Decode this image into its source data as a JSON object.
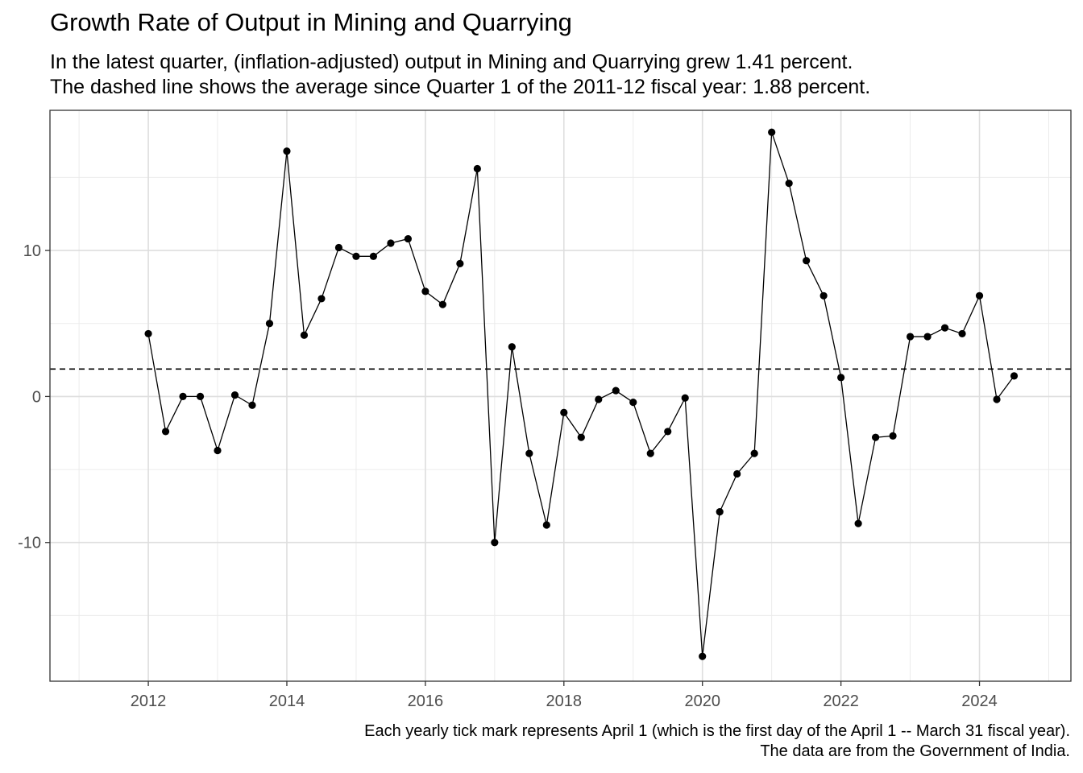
{
  "chart_data": {
    "type": "line",
    "title": "Growth Rate of Output in Mining and Quarrying",
    "subtitle": [
      "In the latest quarter, (inflation-adjusted) output in Mining and Quarrying grew 1.41 percent.",
      "The dashed line shows the average since Quarter 1 of the 2011-12 fiscal year: 1.88 percent."
    ],
    "caption": [
      "Each yearly tick mark represents April 1 (which is the first day of the April 1 -- March 31 fiscal year).",
      "The data are from the Government of India."
    ],
    "xlabel": "",
    "ylabel": "",
    "x_ticks": [
      "2012",
      "2014",
      "2016",
      "2018",
      "2020",
      "2022",
      "2024"
    ],
    "y_ticks": [
      -10,
      0,
      10
    ],
    "xlim": [
      2010.58,
      2025.32
    ],
    "ylim": [
      -19.5,
      19.6
    ],
    "grid": true,
    "average": 1.88,
    "latest": 1.41,
    "x": [
      2012.0,
      2012.25,
      2012.5,
      2012.75,
      2013.0,
      2013.25,
      2013.5,
      2013.75,
      2014.0,
      2014.25,
      2014.5,
      2014.75,
      2015.0,
      2015.25,
      2015.5,
      2015.75,
      2016.0,
      2016.25,
      2016.5,
      2016.75,
      2017.0,
      2017.25,
      2017.5,
      2017.75,
      2018.0,
      2018.25,
      2018.5,
      2018.75,
      2019.0,
      2019.25,
      2019.5,
      2019.75,
      2020.0,
      2020.25,
      2020.5,
      2020.75,
      2021.0,
      2021.25,
      2021.5,
      2021.75,
      2022.0,
      2022.25,
      2022.5,
      2022.75,
      2023.0,
      2023.25,
      2023.5,
      2023.75,
      2024.0,
      2024.25,
      2024.5
    ],
    "values": [
      4.3,
      -2.4,
      0.0,
      0.0,
      -3.7,
      0.1,
      -0.6,
      5.0,
      16.8,
      4.2,
      6.7,
      10.2,
      9.6,
      9.6,
      10.5,
      10.8,
      7.2,
      6.3,
      9.1,
      15.6,
      -10.0,
      3.4,
      -3.9,
      -8.8,
      -1.1,
      -2.8,
      -0.2,
      0.4,
      -0.4,
      -3.9,
      -2.4,
      -0.1,
      -17.8,
      -7.9,
      -5.3,
      -3.9,
      18.1,
      14.6,
      9.3,
      6.9,
      1.3,
      -8.7,
      -2.8,
      -2.7,
      4.1,
      4.1,
      4.7,
      4.3,
      6.9,
      -0.2,
      1.41
    ]
  }
}
